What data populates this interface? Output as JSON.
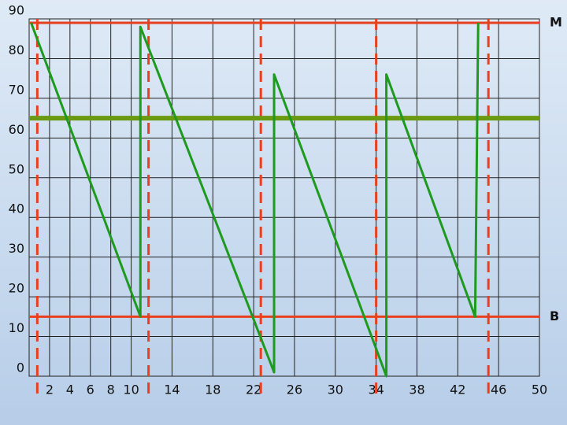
{
  "chart_data": {
    "type": "line",
    "x": [
      0.2,
      10.9,
      10.9,
      24,
      24,
      35,
      35,
      43.7,
      44
    ],
    "series": [
      {
        "color": "#1e9a1e",
        "values": [
          89,
          15,
          88,
          1,
          76,
          0,
          76,
          15,
          89
        ]
      }
    ],
    "xlim": [
      0,
      50
    ],
    "ylim": [
      0,
      90
    ],
    "xticks": [
      2,
      4,
      6,
      8,
      10,
      14,
      18,
      22,
      26,
      30,
      34,
      38,
      42,
      46,
      50
    ],
    "yticks": [
      0,
      10,
      20,
      30,
      40,
      50,
      60,
      70,
      80,
      90
    ],
    "grid": true,
    "hlines": [
      {
        "value": 89,
        "label": "M",
        "color": "#e8401e"
      },
      {
        "value": 15,
        "label": "B",
        "color": "#e8401e"
      },
      {
        "value": 65,
        "color": "#6a9a12"
      }
    ],
    "vlines": [
      {
        "value": 0.8,
        "color": "#e8401e"
      },
      {
        "value": 11.7,
        "color": "#e8401e"
      },
      {
        "value": 22.7,
        "color": "#e8401e"
      },
      {
        "value": 34,
        "color": "#e8401e"
      },
      {
        "value": 45,
        "color": "#e8401e"
      }
    ]
  }
}
